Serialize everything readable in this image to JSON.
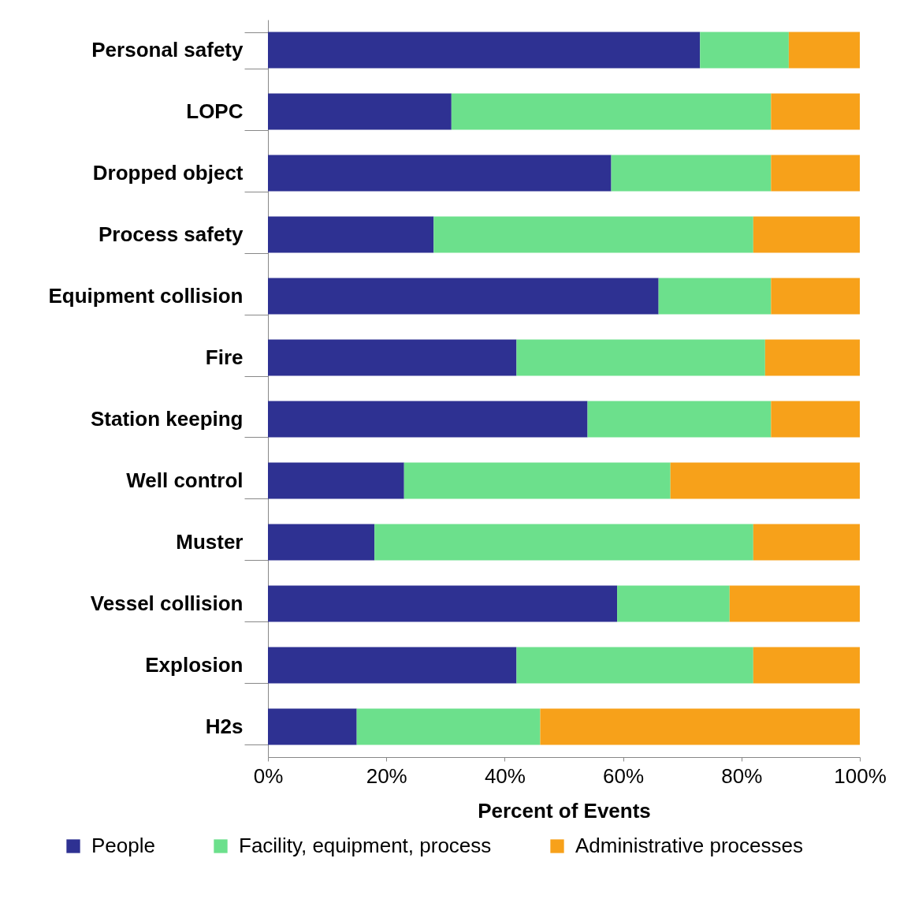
{
  "chart_data": {
    "type": "bar",
    "orientation": "horizontal",
    "stacked": true,
    "xlabel": "Percent of Events",
    "categories": [
      "Personal safety",
      "LOPC",
      "Dropped object",
      "Process safety",
      "Equipment collision",
      "Fire",
      "Station keeping",
      "Well control",
      "Muster",
      "Vessel collision",
      "Explosion",
      "H2s"
    ],
    "series": [
      {
        "name": "People",
        "color": "#2e3192",
        "values": [
          73,
          31,
          58,
          28,
          66,
          42,
          54,
          23,
          18,
          59,
          42,
          15
        ]
      },
      {
        "name": "Facility, equipment, process",
        "color": "#6ce08c",
        "values": [
          15,
          54,
          27,
          54,
          19,
          42,
          31,
          45,
          64,
          19,
          40,
          31
        ]
      },
      {
        "name": "Administrative processes",
        "color": "#f7a11a",
        "values": [
          12,
          15,
          15,
          18,
          15,
          16,
          15,
          32,
          18,
          22,
          18,
          54
        ]
      }
    ],
    "xlim": [
      0,
      100
    ],
    "xticks": [
      {
        "value": 0,
        "label": "0%"
      },
      {
        "value": 20,
        "label": "20%"
      },
      {
        "value": 40,
        "label": "40%"
      },
      {
        "value": 60,
        "label": "60%"
      },
      {
        "value": 80,
        "label": "80%"
      },
      {
        "value": 100,
        "label": "100%"
      }
    ],
    "grid": false,
    "legend": "bottom"
  }
}
